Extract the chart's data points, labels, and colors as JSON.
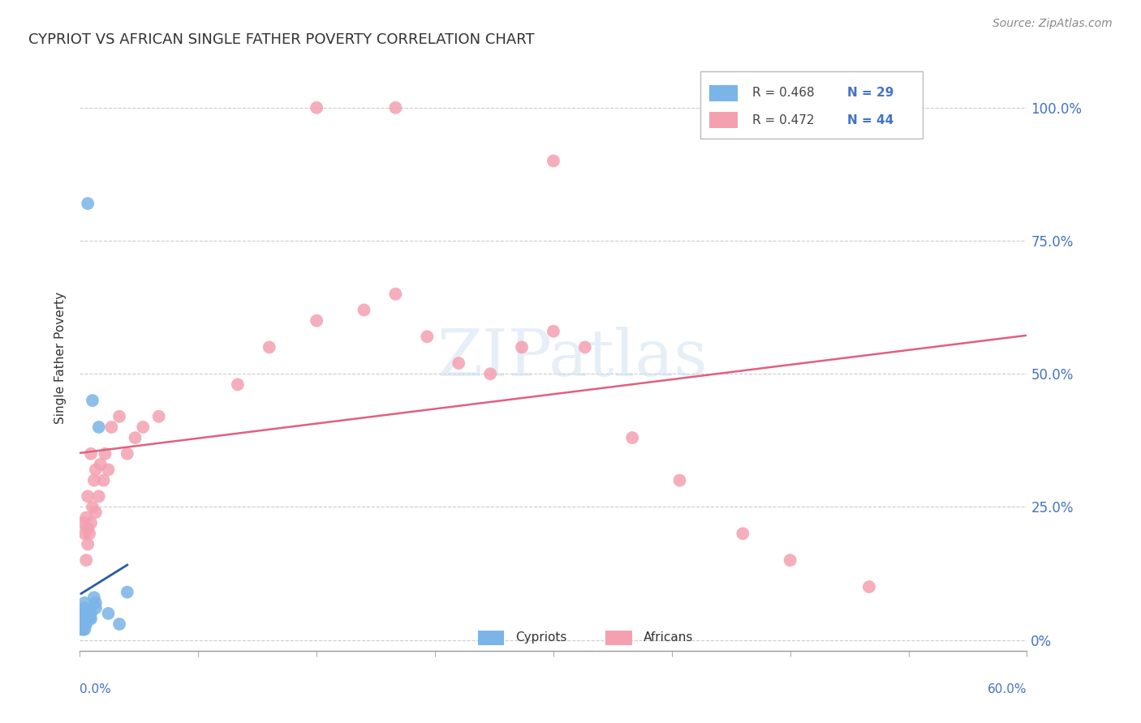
{
  "title": "CYPRIOT VS AFRICAN SINGLE FATHER POVERTY CORRELATION CHART",
  "source": "Source: ZipAtlas.com",
  "ylabel": "Single Father Poverty",
  "ytick_labels": [
    "0%",
    "25.0%",
    "50.0%",
    "75.0%",
    "100.0%"
  ],
  "ytick_values": [
    0,
    0.25,
    0.5,
    0.75,
    1.0
  ],
  "xmin": 0.0,
  "xmax": 0.6,
  "ymin": -0.02,
  "ymax": 1.08,
  "legend_blue_R": "R = 0.468",
  "legend_blue_N": "N = 29",
  "legend_pink_R": "R = 0.472",
  "legend_pink_N": "N = 44",
  "watermark": "ZIPatlas",
  "cypriot_color": "#7ab4e8",
  "african_color": "#f4a0b0",
  "cypriot_line_color": "#2a5ba8",
  "african_line_color": "#e06080",
  "background_color": "#ffffff",
  "cypriot_x": [
    0.001,
    0.001,
    0.002,
    0.002,
    0.002,
    0.002,
    0.003,
    0.003,
    0.003,
    0.003,
    0.003,
    0.003,
    0.004,
    0.004,
    0.004,
    0.005,
    0.005,
    0.006,
    0.007,
    0.007,
    0.008,
    0.009,
    0.01,
    0.01,
    0.012,
    0.018,
    0.025,
    0.03,
    0.005
  ],
  "cypriot_y": [
    0.02,
    0.03,
    0.04,
    0.05,
    0.02,
    0.03,
    0.04,
    0.05,
    0.06,
    0.07,
    0.02,
    0.03,
    0.04,
    0.05,
    0.03,
    0.04,
    0.05,
    0.04,
    0.05,
    0.04,
    0.45,
    0.08,
    0.07,
    0.06,
    0.4,
    0.05,
    0.03,
    0.09,
    0.82
  ],
  "african_x": [
    0.002,
    0.003,
    0.004,
    0.004,
    0.005,
    0.005,
    0.005,
    0.006,
    0.007,
    0.007,
    0.008,
    0.009,
    0.01,
    0.01,
    0.012,
    0.013,
    0.015,
    0.016,
    0.018,
    0.02,
    0.025,
    0.03,
    0.035,
    0.04,
    0.05,
    0.1,
    0.12,
    0.15,
    0.18,
    0.2,
    0.22,
    0.24,
    0.26,
    0.28,
    0.3,
    0.32,
    0.35,
    0.38,
    0.42,
    0.45,
    0.5,
    0.15,
    0.2,
    0.3
  ],
  "african_y": [
    0.22,
    0.2,
    0.15,
    0.23,
    0.18,
    0.21,
    0.27,
    0.2,
    0.22,
    0.35,
    0.25,
    0.3,
    0.24,
    0.32,
    0.27,
    0.33,
    0.3,
    0.35,
    0.32,
    0.4,
    0.42,
    0.35,
    0.38,
    0.4,
    0.42,
    0.48,
    0.55,
    0.6,
    0.62,
    0.65,
    0.57,
    0.52,
    0.5,
    0.55,
    0.58,
    0.55,
    0.38,
    0.3,
    0.2,
    0.15,
    0.1,
    1.0,
    1.0,
    0.9
  ],
  "xtick_minor_positions": [
    0.0,
    0.075,
    0.15,
    0.225,
    0.3,
    0.375,
    0.45,
    0.525,
    0.6
  ]
}
